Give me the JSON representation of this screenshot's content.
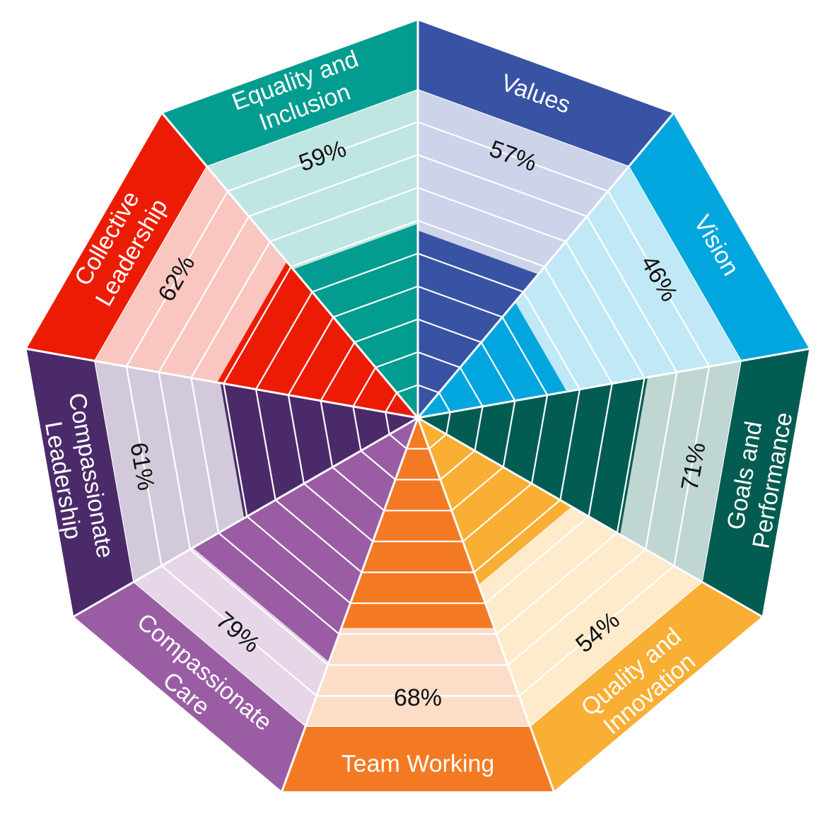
{
  "chart_data": {
    "type": "radial-segmented",
    "title": "",
    "max_value": 100,
    "bands": 10,
    "segments": [
      {
        "label_lines": [
          "Values"
        ],
        "value": 57,
        "value_label": "57%",
        "color": "#3852A4",
        "light": "#CDD3E9"
      },
      {
        "label_lines": [
          "Vision"
        ],
        "value": 46,
        "value_label": "46%",
        "color": "#02A6DE",
        "light": "#C0E8F6"
      },
      {
        "label_lines": [
          "Goals and",
          "Performance"
        ],
        "value": 71,
        "value_label": "71%",
        "color": "#025C52",
        "light": "#BFD6D3"
      },
      {
        "label_lines": [
          "Quality and",
          "Innovation"
        ],
        "value": 54,
        "value_label": "54%",
        "color": "#F9AE34",
        "light": "#FEEBCC"
      },
      {
        "label_lines": [
          "Team Working"
        ],
        "value": 68,
        "value_label": "68%",
        "color": "#F37A23",
        "light": "#FCDDC8"
      },
      {
        "label_lines": [
          "Compassionate",
          "Care"
        ],
        "value": 79,
        "value_label": "79%",
        "color": "#9A5DA4",
        "light": "#E6D6E8"
      },
      {
        "label_lines": [
          "Compassionate",
          "Leadership"
        ],
        "value": 61,
        "value_label": "61%",
        "color": "#4B2A6A",
        "light": "#D2CADA"
      },
      {
        "label_lines": [
          "Collective",
          "Leadership"
        ],
        "value": 62,
        "value_label": "62%",
        "color": "#EC1C04",
        "light": "#FAC6C0"
      },
      {
        "label_lines": [
          "Equality and",
          "Inclusion"
        ],
        "value": 59,
        "value_label": "59%",
        "color": "#039C90",
        "light": "#C0E6E3"
      }
    ]
  }
}
